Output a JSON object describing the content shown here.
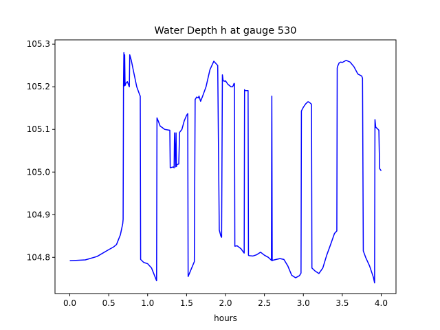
{
  "chart_data": {
    "type": "line",
    "title": "Water Depth h at gauge 530",
    "xlabel": "hours",
    "ylabel": "",
    "xlim": [
      -0.19,
      4.19
    ],
    "ylim": [
      104.715,
      105.31
    ],
    "xticks": [
      0.0,
      0.5,
      1.0,
      1.5,
      2.0,
      2.5,
      3.0,
      3.5,
      4.0
    ],
    "xtick_labels": [
      "0.0",
      "0.5",
      "1.0",
      "1.5",
      "2.0",
      "2.5",
      "3.0",
      "3.5",
      "4.0"
    ],
    "yticks": [
      104.8,
      104.9,
      105.0,
      105.1,
      105.2,
      105.3
    ],
    "ytick_labels": [
      "104.8",
      "104.9",
      "105.0",
      "105.1",
      "105.2",
      "105.3"
    ],
    "grid": false,
    "series": [
      {
        "color": "#0000ff",
        "x": [
          0.0,
          0.2,
          0.35,
          0.5,
          0.56,
          0.6,
          0.65,
          0.68,
          0.685,
          0.69,
          0.695,
          0.7,
          0.705,
          0.71,
          0.72,
          0.74,
          0.76,
          0.765,
          0.77,
          0.79,
          0.82,
          0.86,
          0.9,
          0.905,
          0.91,
          0.95,
          1.0,
          1.05,
          1.1,
          1.115,
          1.12,
          1.14,
          1.16,
          1.22,
          1.285,
          1.29,
          1.33,
          1.34,
          1.345,
          1.36,
          1.365,
          1.37,
          1.375,
          1.4,
          1.41,
          1.44,
          1.47,
          1.5,
          1.515,
          1.52,
          1.6,
          1.61,
          1.63,
          1.65,
          1.66,
          1.68,
          1.7,
          1.75,
          1.8,
          1.85,
          1.9,
          1.92,
          1.94,
          1.95,
          1.96,
          1.97,
          1.99,
          2.0,
          2.03,
          2.07,
          2.09,
          2.1,
          2.11,
          2.115,
          2.12,
          2.15,
          2.2,
          2.235,
          2.24,
          2.245,
          2.25,
          2.27,
          2.29,
          2.295,
          2.3,
          2.35,
          2.4,
          2.45,
          2.5,
          2.55,
          2.59,
          2.595,
          2.6,
          2.605,
          2.65,
          2.7,
          2.75,
          2.8,
          2.85,
          2.9,
          2.95,
          2.97,
          2.975,
          2.98,
          3.0,
          3.03,
          3.06,
          3.08,
          3.1,
          3.105,
          3.11,
          3.15,
          3.2,
          3.25,
          3.3,
          3.35,
          3.4,
          3.43,
          3.435,
          3.44,
          3.46,
          3.48,
          3.5,
          3.55,
          3.6,
          3.65,
          3.7,
          3.73,
          3.75,
          3.76,
          3.77,
          3.8,
          3.85,
          3.9,
          3.915,
          3.92,
          3.93,
          3.95,
          3.97,
          3.975,
          3.98,
          4.0
        ],
        "y": [
          104.792,
          104.794,
          104.802,
          104.818,
          104.824,
          104.83,
          104.853,
          104.879,
          104.889,
          105.205,
          105.28,
          105.202,
          105.275,
          105.203,
          105.208,
          105.212,
          105.202,
          105.2,
          105.275,
          105.262,
          105.235,
          105.2,
          105.18,
          105.178,
          104.795,
          104.788,
          104.785,
          104.775,
          104.752,
          104.745,
          105.127,
          105.118,
          105.108,
          105.1,
          105.098,
          105.01,
          105.012,
          105.01,
          105.092,
          105.012,
          105.092,
          105.013,
          105.017,
          105.019,
          105.093,
          105.1,
          105.12,
          105.133,
          105.137,
          104.755,
          104.79,
          105.17,
          105.176,
          105.174,
          105.178,
          105.166,
          105.175,
          105.2,
          105.24,
          105.26,
          105.25,
          104.864,
          104.85,
          104.847,
          105.228,
          105.214,
          105.213,
          105.214,
          105.206,
          105.2,
          105.2,
          105.203,
          105.208,
          105.207,
          104.826,
          104.827,
          104.82,
          104.811,
          104.81,
          105.193,
          105.191,
          105.191,
          105.191,
          104.805,
          104.804,
          104.803,
          104.806,
          104.812,
          104.805,
          104.8,
          104.793,
          105.178,
          104.792,
          104.793,
          104.795,
          104.797,
          104.795,
          104.78,
          104.758,
          104.752,
          104.757,
          104.763,
          105.143,
          105.145,
          105.152,
          105.16,
          105.165,
          105.163,
          105.16,
          105.158,
          104.775,
          104.768,
          104.762,
          104.775,
          104.805,
          104.83,
          104.856,
          104.862,
          105.244,
          105.248,
          105.256,
          105.258,
          105.257,
          105.262,
          105.258,
          105.247,
          105.23,
          105.227,
          105.225,
          105.22,
          104.815,
          104.8,
          104.78,
          104.753,
          104.74,
          105.123,
          105.105,
          105.102,
          105.098,
          105.05,
          105.008,
          105.003
        ]
      }
    ]
  }
}
